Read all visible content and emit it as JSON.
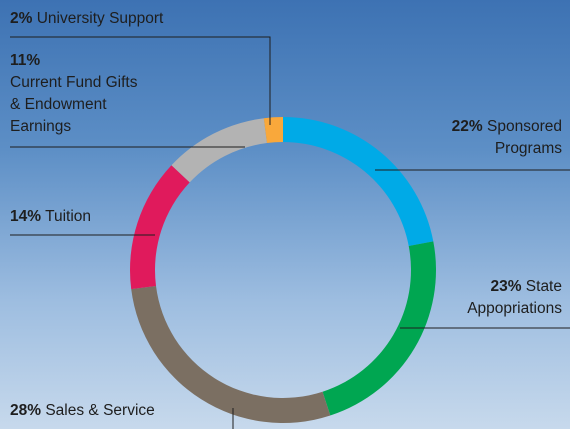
{
  "chart_data": {
    "type": "donut",
    "categories": [
      "Sponsored Programs",
      "State Appopriations",
      "Sales & Service",
      "Tuition",
      "Current Fund Gifts & Endowment Earnings",
      "University Support"
    ],
    "values": [
      22,
      23,
      28,
      14,
      11,
      2
    ],
    "value_labels": [
      "22%",
      "23%",
      "28%",
      "14%",
      "11%",
      "2%"
    ],
    "colors": [
      "#00aae7",
      "#00a651",
      "#7b6f62",
      "#e01a5c",
      "#b3b3b3",
      "#f9a83b"
    ]
  }
}
